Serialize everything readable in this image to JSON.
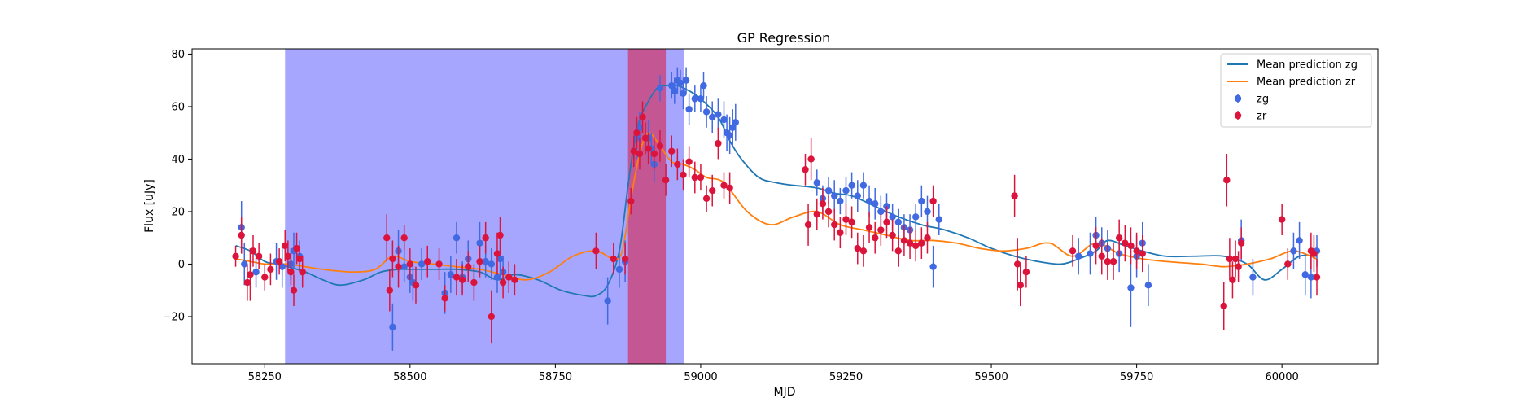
{
  "chart_data": {
    "type": "scatter",
    "title": "GP Regression",
    "xlabel": "MJD",
    "ylabel": "Flux [uJy]",
    "xlim": [
      58125,
      60165
    ],
    "ylim": [
      -38,
      82
    ],
    "xticks": [
      58250,
      58500,
      58750,
      59000,
      59250,
      59500,
      59750,
      60000
    ],
    "yticks": [
      -20,
      0,
      20,
      40,
      60,
      80
    ],
    "grid": false,
    "legend": {
      "position": "top-right",
      "entries": [
        {
          "label": "Mean prediction zg",
          "kind": "line",
          "color": "#1f77b4"
        },
        {
          "label": "Mean prediction zr",
          "kind": "line",
          "color": "#ff7f0e"
        },
        {
          "label": "zg",
          "kind": "marker",
          "color": "#4169e1"
        },
        {
          "label": "zr",
          "kind": "marker",
          "color": "#dc143c"
        }
      ]
    },
    "shaded_regions": [
      {
        "x0": 58285,
        "x1": 58972,
        "color": "#0000ff",
        "opacity": 0.35
      },
      {
        "x0": 58875,
        "x1": 58940,
        "color": "#dc143c",
        "opacity": 0.55
      }
    ],
    "series": [
      {
        "name": "Mean prediction zg",
        "kind": "line",
        "color": "#1f77b4",
        "x": [
          58200,
          58225,
          58250,
          58270,
          58290,
          58320,
          58350,
          58380,
          58420,
          58450,
          58480,
          58500,
          58540,
          58580,
          58620,
          58650,
          58680,
          58720,
          58760,
          58800,
          58820,
          58840,
          58860,
          58875,
          58885,
          58895,
          58910,
          58925,
          58940,
          58960,
          58980,
          59000,
          59030,
          59050,
          59070,
          59100,
          59130,
          59160,
          59200,
          59230,
          59260,
          59300,
          59340,
          59380,
          59420,
          59460,
          59500,
          59540,
          59580,
          59620,
          59650,
          59680,
          59700,
          59730,
          59760,
          59800,
          59850,
          59900,
          59940,
          59970,
          60000,
          60030,
          60060
        ],
        "y": [
          7,
          5,
          1,
          0,
          -1,
          -3,
          -6,
          -8,
          -6,
          -3,
          -2,
          -2,
          -2,
          -2,
          -3,
          -6,
          -4,
          -6,
          -10,
          -12,
          -12,
          -8,
          5,
          30,
          45,
          55,
          62,
          67,
          68,
          68,
          66,
          63,
          56,
          47,
          40,
          33,
          31,
          30,
          29,
          27,
          26,
          22,
          18,
          15,
          13,
          10,
          6,
          3,
          1,
          0,
          2,
          5,
          9,
          7,
          5,
          3,
          3,
          3,
          0,
          -6,
          -2,
          3,
          3
        ]
      },
      {
        "name": "Mean prediction zr",
        "kind": "line",
        "color": "#ff7f0e",
        "x": [
          58200,
          58225,
          58250,
          58270,
          58290,
          58320,
          58350,
          58400,
          58440,
          58470,
          58500,
          58540,
          58580,
          58620,
          58660,
          58700,
          58740,
          58780,
          58820,
          58850,
          58865,
          58880,
          58895,
          58910,
          58930,
          58950,
          58970,
          58990,
          59010,
          59040,
          59080,
          59120,
          59160,
          59200,
          59240,
          59280,
          59320,
          59360,
          59400,
          59440,
          59480,
          59520,
          59560,
          59600,
          59640,
          59680,
          59720,
          59760,
          59800,
          59860,
          59900,
          59940,
          59980,
          60020,
          60060
        ],
        "y": [
          2,
          1,
          0,
          0,
          0,
          -1,
          -2,
          -3,
          -2,
          3,
          1,
          0,
          -1,
          -2,
          -4,
          -6,
          -3,
          3,
          5,
          2,
          5,
          25,
          42,
          50,
          45,
          39,
          38,
          36,
          33,
          31,
          20,
          15,
          18,
          20,
          15,
          13,
          11,
          9,
          9,
          8,
          6,
          5,
          6,
          8,
          3,
          8,
          4,
          2,
          1,
          0,
          -1,
          0,
          2,
          5,
          2
        ]
      },
      {
        "name": "zg",
        "kind": "errorbar",
        "color": "#4169e1",
        "x": [
          58210,
          58215,
          58235,
          58270,
          58280,
          58295,
          58300,
          58310,
          58470,
          58480,
          58490,
          58500,
          58505,
          58520,
          58560,
          58570,
          58580,
          58590,
          58600,
          58620,
          58630,
          58640,
          58650,
          58655,
          58660,
          58840,
          58860,
          58870,
          58890,
          58895,
          58910,
          58915,
          58920,
          58930,
          58950,
          58955,
          58960,
          58965,
          58970,
          58975,
          58980,
          58990,
          59000,
          59005,
          59010,
          59020,
          59030,
          59040,
          59045,
          59050,
          59055,
          59060,
          59200,
          59210,
          59220,
          59230,
          59240,
          59250,
          59260,
          59270,
          59280,
          59290,
          59300,
          59310,
          59320,
          59330,
          59340,
          59350,
          59360,
          59370,
          59380,
          59390,
          59400,
          59410,
          59650,
          59670,
          59680,
          59690,
          59700,
          59720,
          59740,
          59750,
          59760,
          59770,
          59930,
          59950,
          60020,
          60030,
          60040,
          60050,
          60060
        ],
        "y": [
          14,
          0,
          -3,
          1,
          -1,
          0,
          5,
          3,
          -24,
          5,
          -1,
          -5,
          -7,
          0,
          -11,
          -4,
          10,
          -5,
          2,
          8,
          1,
          0,
          -5,
          2,
          -3,
          -14,
          -2,
          1,
          48,
          52,
          48,
          44,
          38,
          67,
          68,
          66,
          70,
          69,
          65,
          70,
          59,
          63,
          63,
          68,
          58,
          56,
          57,
          55,
          50,
          49,
          52,
          54,
          31,
          25,
          28,
          26,
          24,
          28,
          30,
          26,
          30,
          24,
          23,
          20,
          22,
          18,
          16,
          14,
          13,
          18,
          24,
          20,
          -1,
          17,
          3,
          4,
          11,
          8,
          6,
          4,
          -9,
          3,
          8,
          -8,
          9,
          -5,
          5,
          9,
          -4,
          -5,
          5
        ],
        "err": [
          10,
          8,
          6,
          7,
          8,
          6,
          7,
          6,
          9,
          8,
          6,
          6,
          7,
          6,
          8,
          7,
          6,
          6,
          7,
          8,
          6,
          6,
          6,
          7,
          6,
          9,
          7,
          8,
          8,
          6,
          7,
          6,
          7,
          5,
          5,
          5,
          5,
          5,
          6,
          5,
          6,
          5,
          5,
          5,
          6,
          6,
          6,
          7,
          7,
          7,
          7,
          7,
          5,
          5,
          5,
          6,
          5,
          5,
          5,
          6,
          5,
          6,
          6,
          6,
          5,
          5,
          5,
          5,
          6,
          5,
          6,
          6,
          8,
          6,
          7,
          8,
          7,
          6,
          7,
          7,
          15,
          8,
          8,
          8,
          8,
          7,
          7,
          7,
          8,
          8,
          6
        ]
      },
      {
        "name": "zr",
        "kind": "errorbar",
        "color": "#dc143c",
        "x": [
          58200,
          58210,
          58220,
          58225,
          58230,
          58240,
          58250,
          58260,
          58275,
          58285,
          58290,
          58295,
          58300,
          58305,
          58310,
          58315,
          58460,
          58465,
          58470,
          58480,
          58490,
          58500,
          58510,
          58530,
          58550,
          58560,
          58580,
          58590,
          58600,
          58610,
          58620,
          58630,
          58640,
          58650,
          58655,
          58660,
          58670,
          58680,
          58820,
          58850,
          58870,
          58880,
          58885,
          58890,
          58895,
          58900,
          58905,
          58910,
          58920,
          58930,
          58940,
          58950,
          58960,
          58970,
          58980,
          58990,
          59000,
          59010,
          59020,
          59030,
          59040,
          59050,
          59180,
          59185,
          59190,
          59200,
          59210,
          59220,
          59230,
          59240,
          59250,
          59260,
          59270,
          59280,
          59290,
          59300,
          59310,
          59320,
          59330,
          59340,
          59350,
          59360,
          59370,
          59380,
          59390,
          59400,
          59540,
          59545,
          59550,
          59560,
          59640,
          59680,
          59690,
          59700,
          59710,
          59720,
          59730,
          59740,
          59750,
          59760,
          59900,
          59905,
          59910,
          59915,
          59920,
          59925,
          59930,
          60000,
          60010,
          60050,
          60055,
          60060
        ],
        "y": [
          3,
          11,
          -7,
          -4,
          5,
          3,
          -5,
          -2,
          1,
          7,
          3,
          -3,
          -10,
          6,
          2,
          -3,
          10,
          -10,
          2,
          -1,
          10,
          0,
          -8,
          1,
          0,
          -13,
          -5,
          -6,
          -1,
          -7,
          1,
          10,
          -20,
          4,
          11,
          -7,
          -5,
          -6,
          5,
          2,
          2,
          24,
          43,
          50,
          42,
          56,
          48,
          44,
          42,
          45,
          32,
          43,
          38,
          34,
          39,
          33,
          33,
          25,
          28,
          46,
          30,
          29,
          36,
          15,
          40,
          19,
          23,
          20,
          15,
          12,
          17,
          16,
          6,
          5,
          14,
          10,
          13,
          16,
          11,
          5,
          9,
          8,
          7,
          8,
          10,
          24,
          26,
          0,
          -8,
          -3,
          5,
          7,
          3,
          1,
          1,
          10,
          8,
          7,
          5,
          4,
          -16,
          32,
          2,
          -6,
          2,
          -1,
          8,
          17,
          0,
          5,
          4,
          -5
        ],
        "err": [
          4,
          7,
          7,
          10,
          6,
          5,
          5,
          6,
          5,
          6,
          6,
          5,
          6,
          6,
          5,
          6,
          9,
          8,
          7,
          8,
          5,
          6,
          7,
          6,
          6,
          5,
          7,
          6,
          6,
          7,
          6,
          6,
          10,
          8,
          7,
          6,
          6,
          6,
          7,
          6,
          6,
          5,
          6,
          6,
          6,
          6,
          6,
          6,
          6,
          6,
          6,
          6,
          6,
          6,
          6,
          6,
          5,
          5,
          6,
          6,
          5,
          6,
          6,
          8,
          8,
          6,
          6,
          6,
          6,
          6,
          6,
          6,
          6,
          6,
          6,
          6,
          6,
          6,
          6,
          6,
          6,
          6,
          6,
          6,
          6,
          6,
          8,
          10,
          8,
          6,
          6,
          7,
          7,
          7,
          7,
          7,
          7,
          7,
          7,
          7,
          9,
          10,
          8,
          7,
          7,
          6,
          6,
          6,
          6,
          7,
          7,
          7
        ]
      }
    ]
  }
}
